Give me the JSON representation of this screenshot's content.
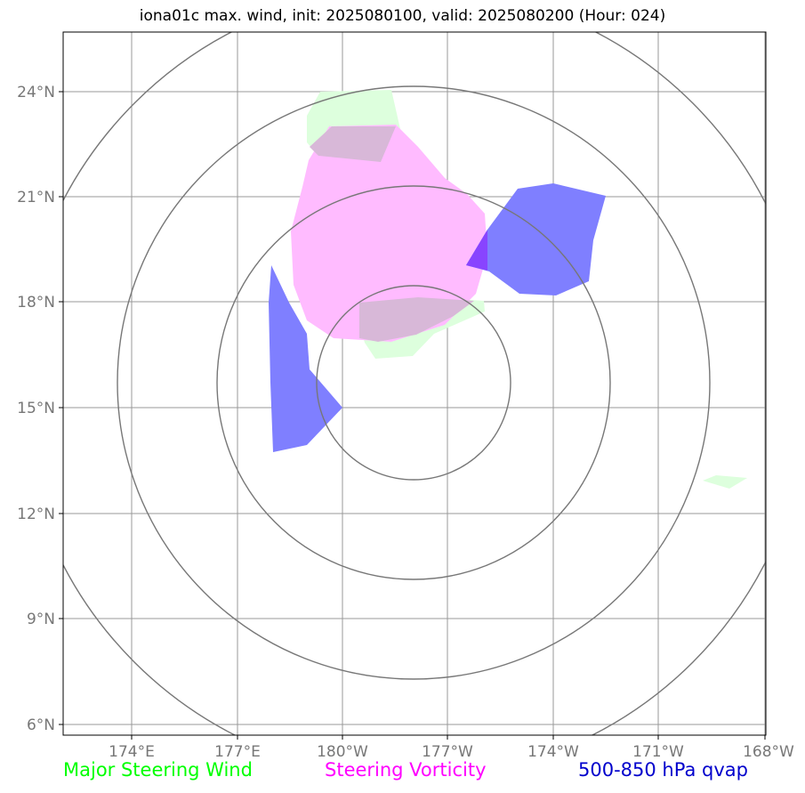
{
  "title": "iona01c max. wind, init: 2025080100, valid: 2025080200 (Hour: 024)",
  "axes": {
    "lat_labels": [
      "24°N",
      "21°N",
      "18°N",
      "15°N",
      "12°N",
      "9°N",
      "6°N"
    ],
    "lat_values": [
      24,
      21,
      18,
      15,
      12,
      9,
      6
    ],
    "lon_labels": [
      "174°E",
      "177°E",
      "180°W",
      "177°W",
      "174°W",
      "171°W",
      "168°W"
    ],
    "lon_values": [
      174,
      177,
      180,
      183,
      186,
      189,
      192
    ],
    "lon_range": [
      172,
      192
    ],
    "lat_range": [
      5.8,
      25.6
    ]
  },
  "legend": [
    {
      "label": "Major Steering Wind",
      "color": "#00ff00"
    },
    {
      "label": "Steering Vorticity",
      "color": "#ff00ff"
    },
    {
      "label": "500-850 hPa qvap",
      "color": "#0000cc"
    }
  ],
  "colors": {
    "wind_fill": "#ddffdd",
    "vorticity_fill": "#ffbbff",
    "qvap_fill": "#7f7fff",
    "overlap_fill": "#d8b8d8",
    "ring_stroke": "#777777",
    "grid_stroke": "#999999"
  }
}
